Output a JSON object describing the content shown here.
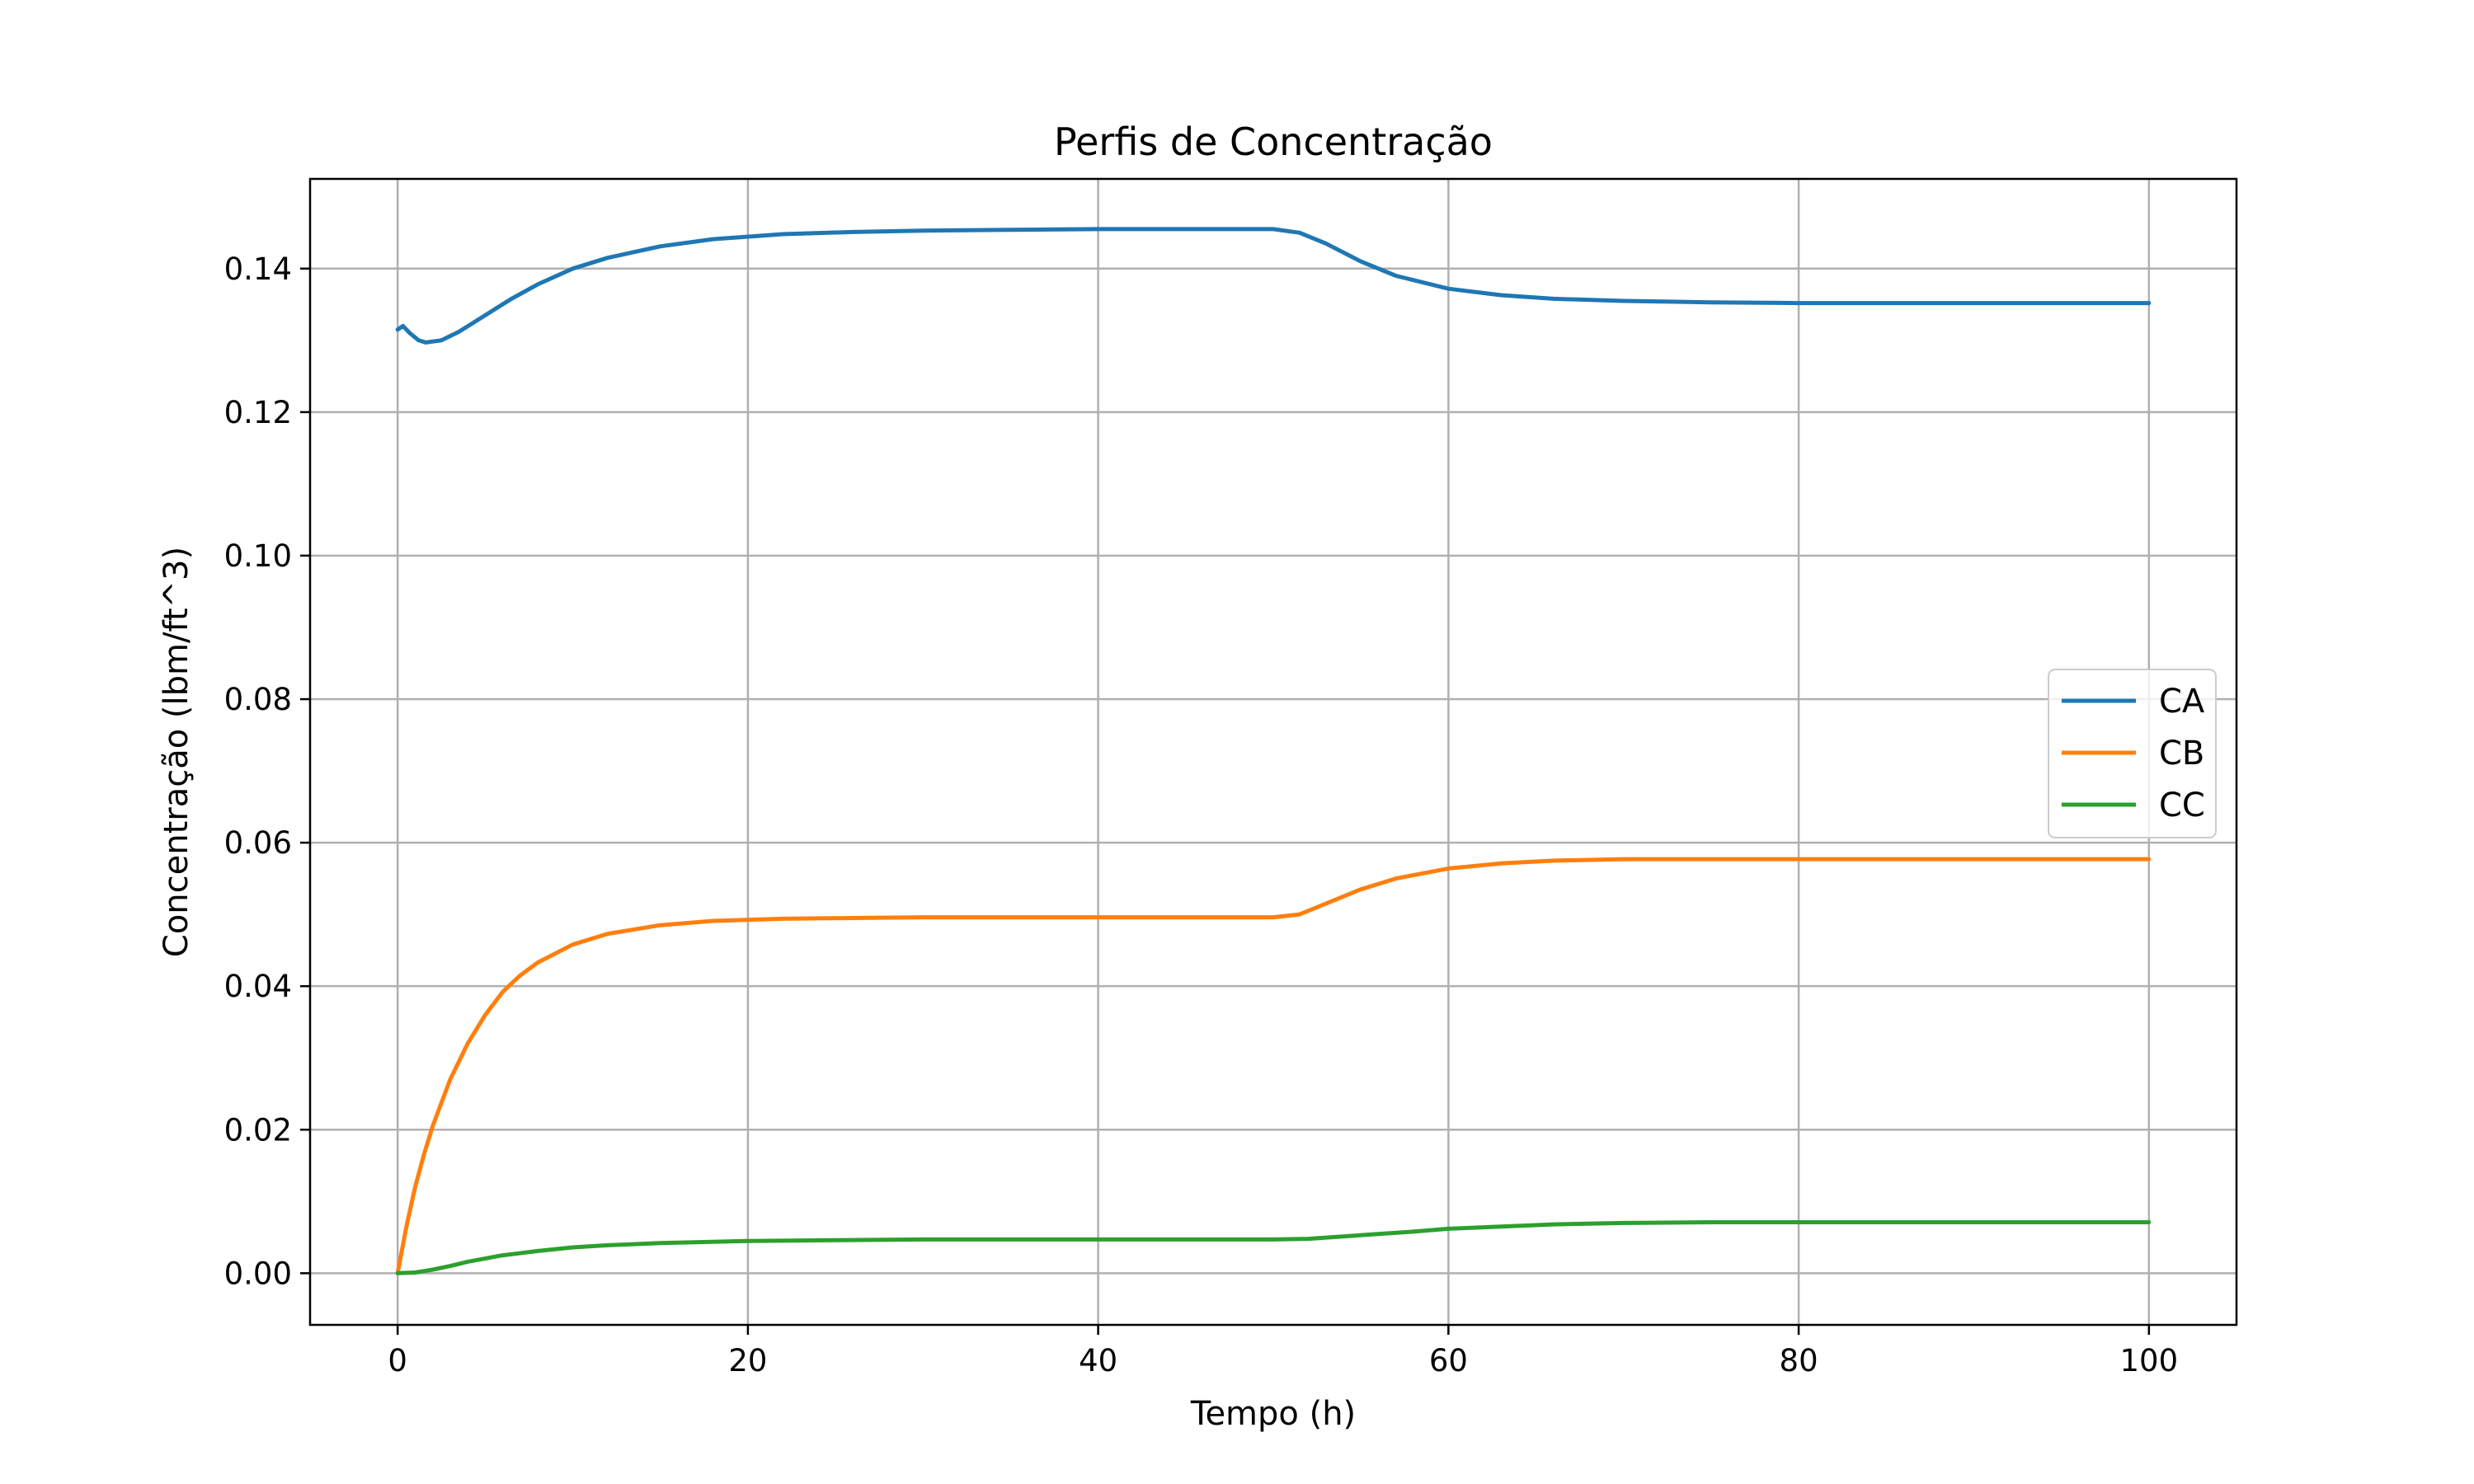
{
  "chart_data": {
    "type": "line",
    "title": "Perfis de Concentração",
    "xlabel": "Tempo (h)",
    "ylabel": "Concentração (lbm/ft^3)",
    "xlim": [
      -5,
      105
    ],
    "ylim": [
      -0.0072,
      0.1525
    ],
    "xticks": [
      0,
      20,
      40,
      60,
      80,
      100
    ],
    "xtick_labels": [
      "0",
      "20",
      "40",
      "60",
      "80",
      "100"
    ],
    "yticks": [
      0.0,
      0.02,
      0.04,
      0.06,
      0.08,
      0.1,
      0.12,
      0.14
    ],
    "ytick_labels": [
      "0.00",
      "0.02",
      "0.04",
      "0.06",
      "0.08",
      "0.10",
      "0.12",
      "0.14"
    ],
    "grid": true,
    "legend_position": "center-right",
    "series": [
      {
        "name": "CA",
        "color": "#1f77b4",
        "x": [
          0,
          0.3,
          0.7,
          1.2,
          1.6,
          2.5,
          3.5,
          5,
          6.5,
          8,
          10,
          12,
          15,
          18,
          22,
          26,
          30,
          35,
          40,
          45,
          50,
          51.5,
          53,
          55,
          57,
          60,
          63,
          66,
          70,
          75,
          80,
          90,
          100
        ],
        "values": [
          0.1315,
          0.132,
          0.131,
          0.13,
          0.1297,
          0.13,
          0.1312,
          0.1335,
          0.1358,
          0.1378,
          0.14,
          0.1415,
          0.1431,
          0.1441,
          0.1448,
          0.1451,
          0.1453,
          0.1454,
          0.1455,
          0.1455,
          0.1455,
          0.145,
          0.1435,
          0.141,
          0.139,
          0.1372,
          0.1363,
          0.1358,
          0.1355,
          0.1353,
          0.1352,
          0.1352,
          0.1352
        ]
      },
      {
        "name": "CB",
        "color": "#ff7f0e",
        "x": [
          0,
          0.5,
          1,
          1.5,
          2,
          3,
          4,
          5,
          6,
          7,
          8,
          10,
          12,
          15,
          18,
          22,
          26,
          30,
          35,
          40,
          45,
          50,
          51.5,
          53,
          55,
          57,
          60,
          63,
          66,
          70,
          75,
          80,
          90,
          100
        ],
        "values": [
          0.0,
          0.0065,
          0.012,
          0.0165,
          0.0205,
          0.027,
          0.032,
          0.036,
          0.0392,
          0.0415,
          0.0433,
          0.0458,
          0.0473,
          0.0485,
          0.0491,
          0.0494,
          0.0495,
          0.0496,
          0.0496,
          0.0496,
          0.0496,
          0.0496,
          0.05,
          0.0515,
          0.0535,
          0.055,
          0.0564,
          0.0571,
          0.0575,
          0.0577,
          0.0577,
          0.0577,
          0.0577,
          0.0577
        ]
      },
      {
        "name": "CC",
        "color": "#2ca02c",
        "x": [
          0,
          1,
          2,
          3,
          4,
          6,
          8,
          10,
          12,
          15,
          20,
          25,
          30,
          40,
          50,
          52,
          55,
          58,
          60,
          63,
          66,
          70,
          75,
          80,
          90,
          100
        ],
        "values": [
          0.0,
          0.0001,
          0.0005,
          0.001,
          0.0016,
          0.0025,
          0.0031,
          0.0036,
          0.0039,
          0.0042,
          0.0045,
          0.0046,
          0.0047,
          0.0047,
          0.0047,
          0.0048,
          0.0053,
          0.0058,
          0.0062,
          0.0065,
          0.0068,
          0.007,
          0.0071,
          0.0071,
          0.0071,
          0.0071
        ]
      }
    ]
  }
}
